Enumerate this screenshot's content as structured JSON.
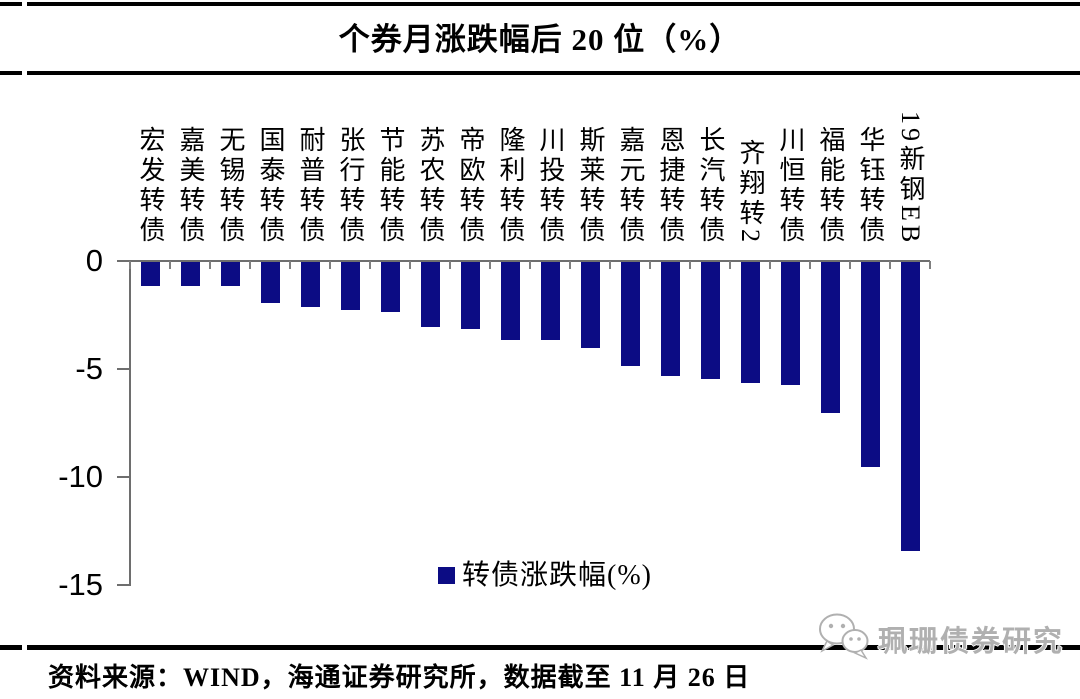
{
  "title": "个券月涨跌幅后 20 位（%）",
  "chart_data": {
    "type": "bar",
    "title": "个券月涨跌幅后 20 位（%）",
    "categories": [
      "宏发转债",
      "嘉美转债",
      "无锡转债",
      "国泰转债",
      "耐普转债",
      "张行转债",
      "节能转债",
      "苏农转债",
      "帝欧转债",
      "隆利转债",
      "川投转债",
      "斯莱转债",
      "嘉元转债",
      "恩捷转债",
      "长汽转债",
      "齐翔转2",
      "川恒转债",
      "福能转债",
      "华钰转债",
      "19新钢EB"
    ],
    "values": [
      -1.1,
      -1.1,
      -1.1,
      -1.9,
      -2.1,
      -2.2,
      -2.3,
      -3.0,
      -3.1,
      -3.6,
      -3.6,
      -4.0,
      -4.8,
      -5.3,
      -5.4,
      -5.6,
      -5.7,
      -7.0,
      -9.5,
      -13.4
    ],
    "series_name": "转债涨跌幅(%)",
    "xlabel": "",
    "ylabel": "",
    "ylim": [
      -15,
      0
    ],
    "yticks": [
      0,
      -5,
      -10,
      -15
    ],
    "grid": false,
    "bar_color": "#0C0C84",
    "axis_color": "#6e6e6e",
    "legend_position": "bottom-center"
  },
  "legend": {
    "label": "转债涨跌幅(%)"
  },
  "footer": {
    "source": "资料来源：WIND，海通证券研究所，数据截至 11 月 26 日"
  },
  "watermark": {
    "text": "珮珊债券研究",
    "icon": "wechat-bubbles-icon"
  }
}
